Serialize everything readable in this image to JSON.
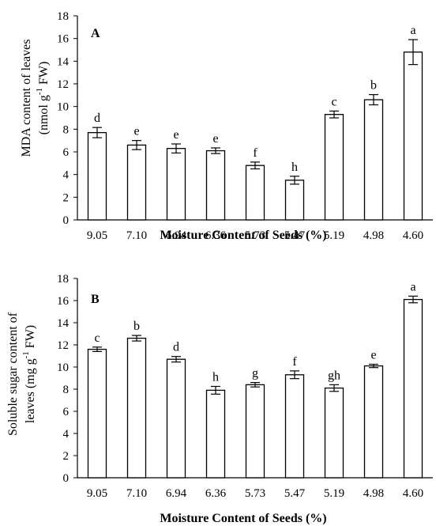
{
  "chart_data": [
    {
      "type": "bar",
      "panel_label": "A",
      "categories": [
        "9.05",
        "7.10",
        "6.94",
        "6.36",
        "5.73",
        "5.47",
        "5.19",
        "4.98",
        "4.60"
      ],
      "values": [
        7.7,
        6.6,
        6.3,
        6.1,
        4.8,
        3.5,
        9.3,
        10.6,
        14.8
      ],
      "errors": [
        0.45,
        0.4,
        0.4,
        0.25,
        0.3,
        0.35,
        0.3,
        0.45,
        1.1
      ],
      "significance": [
        "d",
        "e",
        "e",
        "e",
        "f",
        "h",
        "c",
        "b",
        "a"
      ],
      "xlabel": "Moisture Content of Seeds (%)",
      "ylabel_lines": [
        "MDA content of leaves",
        "(nmol g",
        "-1",
        " FW)"
      ],
      "ylim": [
        0,
        18
      ],
      "yticks": [
        "0",
        "2",
        "4",
        "6",
        "8",
        "10",
        "12",
        "14",
        "16",
        "18"
      ],
      "grid": false
    },
    {
      "type": "bar",
      "panel_label": "B",
      "categories": [
        "9.05",
        "7.10",
        "6.94",
        "6.36",
        "5.73",
        "5.47",
        "5.19",
        "4.98",
        "4.60"
      ],
      "values": [
        11.6,
        12.6,
        10.7,
        7.9,
        8.4,
        9.3,
        8.1,
        10.1,
        16.1
      ],
      "errors": [
        0.2,
        0.25,
        0.25,
        0.35,
        0.2,
        0.35,
        0.3,
        0.15,
        0.3
      ],
      "significance": [
        "c",
        "b",
        "d",
        "h",
        "g",
        "f",
        "gh",
        "e",
        "a"
      ],
      "xlabel": "Moisture Content of Seeds (%)",
      "ylabel_lines": [
        "Soluble sugar content of",
        "leaves (mg g",
        "-1",
        " FW)"
      ],
      "ylim": [
        0,
        18
      ],
      "yticks": [
        "0",
        "2",
        "4",
        "6",
        "8",
        "10",
        "12",
        "14",
        "16",
        "18"
      ],
      "grid": false
    }
  ]
}
